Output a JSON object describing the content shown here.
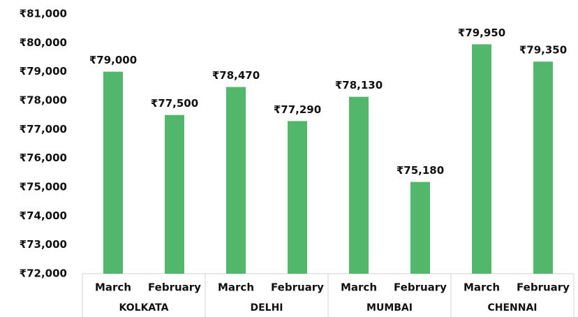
{
  "chart_data": {
    "type": "bar",
    "categories": [
      "March",
      "February",
      "March",
      "February",
      "March",
      "February",
      "March",
      "February"
    ],
    "groups": [
      "KOLKATA",
      "DELHI",
      "MUMBAI",
      "CHENNAI"
    ],
    "values": [
      79000,
      77500,
      78470,
      77290,
      78130,
      75180,
      79950,
      79350
    ],
    "value_labels": [
      "₹79,000",
      "₹77,500",
      "₹78,470",
      "₹77,290",
      "₹78,130",
      "₹75,180",
      "₹79,950",
      "₹79,350"
    ],
    "color": "#52b76b",
    "ylim": [
      72000,
      81000
    ],
    "yticks": [
      {
        "value": 72000,
        "label": "₹72,000"
      },
      {
        "value": 73000,
        "label": "₹73,000"
      },
      {
        "value": 74000,
        "label": "₹74,000"
      },
      {
        "value": 75000,
        "label": "₹75,000"
      },
      {
        "value": 76000,
        "label": "₹76,000"
      },
      {
        "value": 77000,
        "label": "₹77,000"
      },
      {
        "value": 78000,
        "label": "₹78,000"
      },
      {
        "value": 79000,
        "label": "₹79,000"
      },
      {
        "value": 80000,
        "label": "₹80,000"
      },
      {
        "value": 81000,
        "label": "₹81,000"
      }
    ],
    "grid": false
  }
}
